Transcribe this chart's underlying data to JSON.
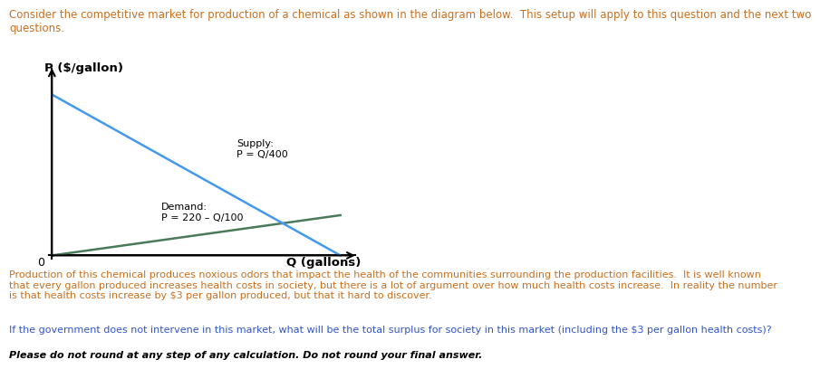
{
  "title_text": "Consider the competitive market for production of a chemical as shown in the diagram below.  This setup will apply to this question and the next two\nquestions.",
  "ylabel": "P ($/gallon)",
  "xlabel": "Q (gallons)",
  "supply_label": "Supply:\nP = Q/400",
  "demand_label": "Demand:\nP = 220 – Q/100",
  "supply_color": "#4a7a5a",
  "demand_color": "#4499ee",
  "axis_color": "#000000",
  "title_color": "#c87020",
  "body1_color": "#c87020",
  "body2_color": "#3355cc",
  "body3_color": "#000000",
  "body_text1": "Production of this chemical produces noxious odors that impact the health of the communities surrounding the production facilities.  It is well known\nthat every gallon produced increases health costs in society, but there is a lot of argument over how much health costs increase.  In reality the number\nis that health costs increase by $3 per gallon produced, but that it hard to discover.",
  "body_text2": "If the government does not intervene in this market, what will be the total surplus for society in this market (including the $3 per gallon health costs)?",
  "body_text3": "Please do not round at any step of any calculation. Do not round your final answer.",
  "background_color": "#ffffff",
  "q_max": 22000,
  "p_max": 220,
  "font_size_title": 8.5,
  "font_size_labels": 9.5,
  "font_size_axis_label": 8.0,
  "font_size_body": 8.0,
  "font_size_bold": 8.0
}
